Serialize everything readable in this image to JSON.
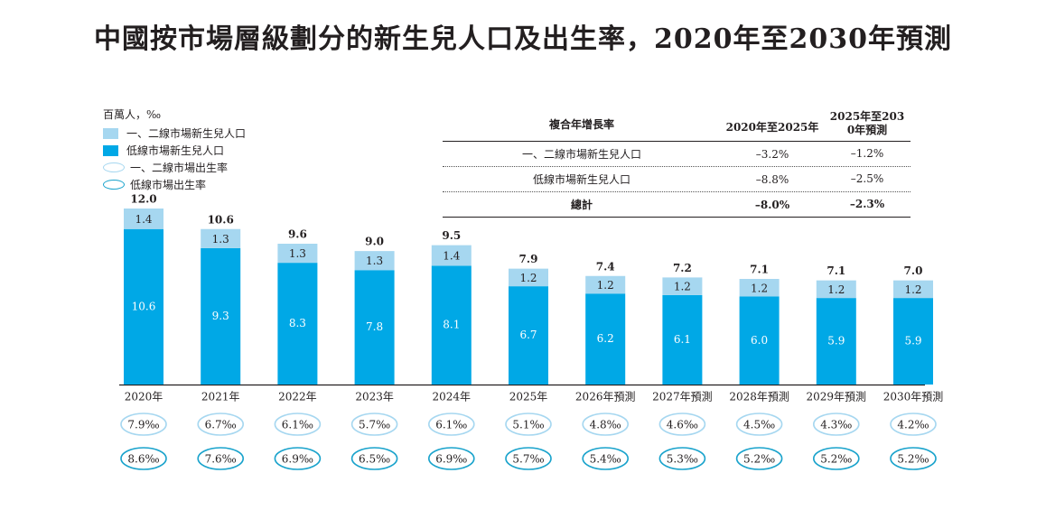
{
  "title": "中國按市場層級劃分的新生兒人口及出生率，2020年至2030年預測",
  "unit_label": "百萬人，‰",
  "legend": [
    {
      "label": "一、二線市場新生兒人口",
      "kind": "bar",
      "color": "#a6d7f0"
    },
    {
      "label": "低線市場新生兒人口",
      "kind": "bar",
      "color": "#00a8e6"
    },
    {
      "label": "一、二線市場出生率",
      "kind": "ellipse",
      "color": "#a6d7f0"
    },
    {
      "label": "低線市場出生率",
      "kind": "ellipse",
      "color": "#1aa3cc"
    }
  ],
  "growth_table": {
    "header": [
      "複合年增長率",
      "2020年至2025年",
      "2025年至2030年預測"
    ],
    "rows": [
      [
        "一、二線市場新生兒人口",
        "–3.2%",
        "–1.2%"
      ],
      [
        "低線市場新生兒人口",
        "–8.8%",
        "–2.5%"
      ]
    ],
    "total": [
      "總計",
      "–8.0%",
      "–2.3%"
    ]
  },
  "chart_data": {
    "type": "bar",
    "stacked": true,
    "categories": [
      "2020年",
      "2021年",
      "2022年",
      "2023年",
      "2024年",
      "2025年",
      "2026年預測",
      "2027年預測",
      "2028年預測",
      "2029年預測",
      "2030年預測"
    ],
    "series": [
      {
        "name": "低線市場新生兒人口",
        "values": [
          10.6,
          9.3,
          8.3,
          7.8,
          8.1,
          6.7,
          6.2,
          6.1,
          6.0,
          5.9,
          5.9
        ],
        "color": "#00a8e6"
      },
      {
        "name": "一、二線市場新生兒人口",
        "values": [
          1.4,
          1.3,
          1.3,
          1.3,
          1.4,
          1.2,
          1.2,
          1.2,
          1.2,
          1.2,
          1.2
        ],
        "color": "#a6d7f0"
      }
    ],
    "totals": [
      12.0,
      10.6,
      9.6,
      9.0,
      9.5,
      7.9,
      7.4,
      7.2,
      7.1,
      7.1,
      7.0
    ],
    "birth_rates": [
      {
        "name": "一、二線市場出生率",
        "values": [
          "7.9‰",
          "6.7‰",
          "6.1‰",
          "5.7‰",
          "6.1‰",
          "5.1‰",
          "4.8‰",
          "4.6‰",
          "4.5‰",
          "4.3‰",
          "4.2‰"
        ],
        "color": "#a6d7f0"
      },
      {
        "name": "低線市場出生率",
        "values": [
          "8.6‰",
          "7.6‰",
          "6.9‰",
          "6.5‰",
          "6.9‰",
          "5.7‰",
          "5.4‰",
          "5.3‰",
          "5.2‰",
          "5.2‰",
          "5.2‰"
        ],
        "color": "#1aa3cc"
      }
    ],
    "ylim": [
      0,
      12.0
    ]
  }
}
